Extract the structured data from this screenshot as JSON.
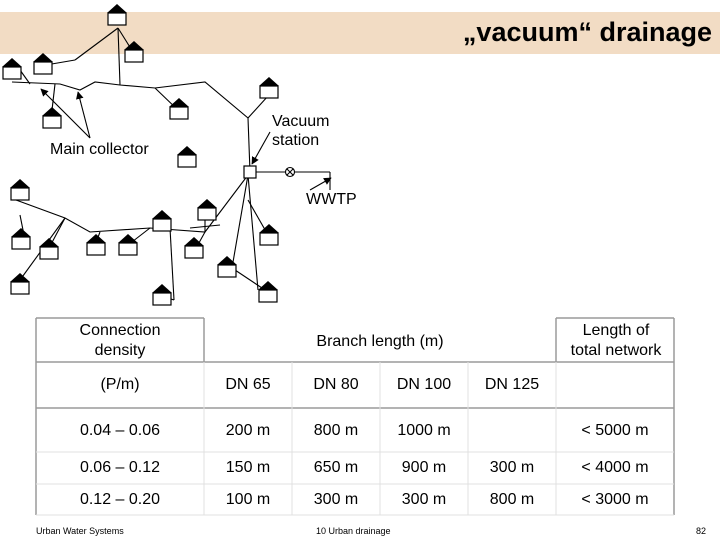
{
  "title": "„vacuum“ drainage",
  "diagram": {
    "labels": {
      "main_collector": "Main collector",
      "vacuum_station_line1": "Vacuum",
      "vacuum_station_line2": "station",
      "wwtp": "WWTP"
    }
  },
  "table": {
    "header": {
      "connection_density_line1": "Connection",
      "connection_density_line2": "density",
      "branch_length": "Branch length (m)",
      "length_total_line1": "Length of",
      "length_total_line2": "total network",
      "unit": "(P/m)",
      "dn": [
        "DN 65",
        "DN 80",
        "DN 100",
        "DN 125"
      ]
    },
    "rows": [
      {
        "density": "0.04 – 0.06",
        "cells": [
          "200 m",
          "800 m",
          "1000 m",
          ""
        ],
        "total": "< 5000 m"
      },
      {
        "density": "0.06 – 0.12",
        "cells": [
          "150 m",
          "650 m",
          "900 m",
          "300 m"
        ],
        "total": "< 4000 m"
      },
      {
        "density": "0.12 – 0.20",
        "cells": [
          "100 m",
          "300 m",
          "300 m",
          "800 m"
        ],
        "total": "< 3000 m"
      }
    ]
  },
  "footer": {
    "left": "Urban Water Systems",
    "center": "10 Urban drainage",
    "page": "82"
  }
}
